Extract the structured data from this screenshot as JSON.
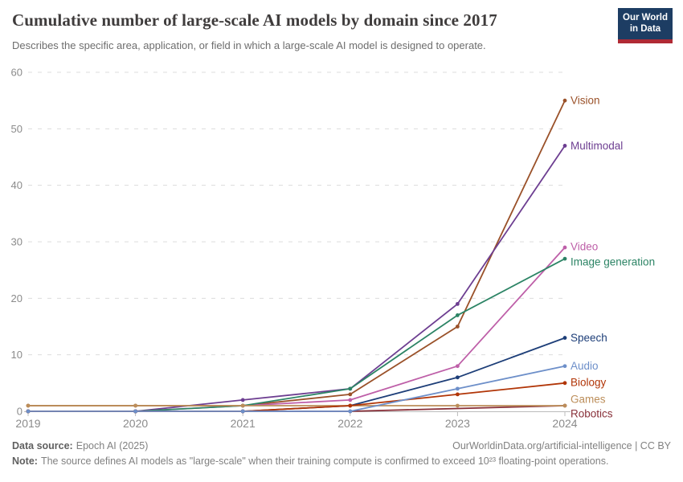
{
  "header": {
    "title": "Cumulative number of large-scale AI models by domain since 2017",
    "subtitle": "Describes the specific area, application, or field in which a large-scale AI model is designed to operate."
  },
  "logo": {
    "line1": "Our World",
    "line2": "in Data"
  },
  "chart_data": {
    "type": "line",
    "title": "Cumulative number of large-scale AI models by domain since 2017",
    "x": [
      2019,
      2020,
      2021,
      2022,
      2023,
      2024
    ],
    "x_tick_labels": [
      "2019",
      "2020",
      "2021",
      "2022",
      "2023",
      "2024"
    ],
    "yticks": [
      0,
      10,
      20,
      30,
      40,
      50,
      60
    ],
    "ylim": [
      0,
      60
    ],
    "grid": "horizontal-dashed",
    "legend_position": "line-end-labels",
    "series": [
      {
        "name": "Vision",
        "color": "#9A5129",
        "values": [
          1,
          1,
          1,
          3,
          15,
          55
        ],
        "label_dy": 0
      },
      {
        "name": "Multimodal",
        "color": "#6D3E91",
        "values": [
          0,
          0,
          2,
          4,
          19,
          47
        ],
        "label_dy": 0
      },
      {
        "name": "Video",
        "color": "#BE5FA8",
        "values": [
          0,
          0,
          1,
          2,
          8,
          29
        ],
        "label_dy": -1
      },
      {
        "name": "Image generation",
        "color": "#2C8465",
        "values": [
          0,
          0,
          1,
          4,
          17,
          27
        ],
        "label_dy": 4
      },
      {
        "name": "Speech",
        "color": "#1D3E78",
        "values": [
          0,
          0,
          0,
          1,
          6,
          13
        ],
        "label_dy": 0
      },
      {
        "name": "Robotics",
        "color": "#883039",
        "values": [
          0,
          0,
          0,
          0,
          null,
          1
        ],
        "label_dy": 10
      },
      {
        "name": "Games",
        "color": "#BC8E5A",
        "values": [
          1,
          1,
          1,
          1,
          1,
          1
        ],
        "label_dy": -8
      },
      {
        "name": "Biology",
        "color": "#B13507",
        "values": [
          0,
          0,
          0,
          1,
          3,
          5
        ],
        "label_dy": -1
      },
      {
        "name": "Audio",
        "color": "#6D8FC9",
        "values": [
          0,
          0,
          0,
          0,
          4,
          8
        ],
        "label_dy": 0
      }
    ]
  },
  "footer": {
    "data_source_label": "Data source:",
    "data_source_value": "Epoch AI (2025)",
    "link": "OurWorldinData.org/artificial-intelligence | CC BY",
    "note_label": "Note:",
    "note_text": "The source defines AI models as \"large-scale\" when their training compute is confirmed to exceed 10²³ floating-point operations."
  }
}
